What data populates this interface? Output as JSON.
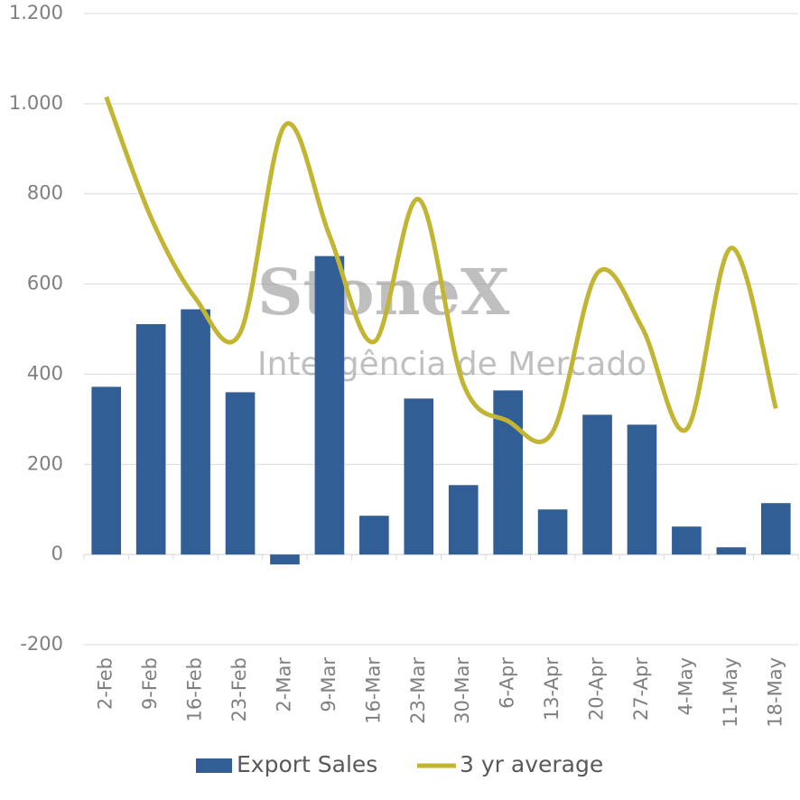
{
  "chart_data": {
    "type": "bar_line",
    "watermark": {
      "brand": "StoneX",
      "mark": "®",
      "tagline": "Inteligência de Mercado"
    },
    "categories": [
      "2-Feb",
      "9-Feb",
      "16-Feb",
      "23-Feb",
      "2-Mar",
      "9-Mar",
      "16-Mar",
      "23-Mar",
      "30-Mar",
      "6-Apr",
      "13-Apr",
      "20-Apr",
      "27-Apr",
      "4-May",
      "11-May",
      "18-May"
    ],
    "series": [
      {
        "name": "Export Sales",
        "type": "bar",
        "color": "#305e95",
        "values": [
          372,
          511,
          544,
          360,
          -22,
          662,
          86,
          346,
          154,
          364,
          100,
          310,
          288,
          62,
          16,
          114
        ]
      },
      {
        "name": "3 yr average",
        "type": "line",
        "smooth": true,
        "color": "#c3b534",
        "values": [
          1015,
          748,
          568,
          492,
          952,
          708,
          472,
          788,
          378,
          296,
          272,
          624,
          504,
          278,
          680,
          324
        ]
      }
    ],
    "ylim": [
      -200,
      1200
    ],
    "yticks": [
      -200,
      0,
      200,
      400,
      600,
      800,
      {
        "value": 1000,
        "label": "1.000"
      },
      {
        "value": 1200,
        "label": "1.200"
      }
    ],
    "grid": true,
    "legend": "bottom"
  }
}
